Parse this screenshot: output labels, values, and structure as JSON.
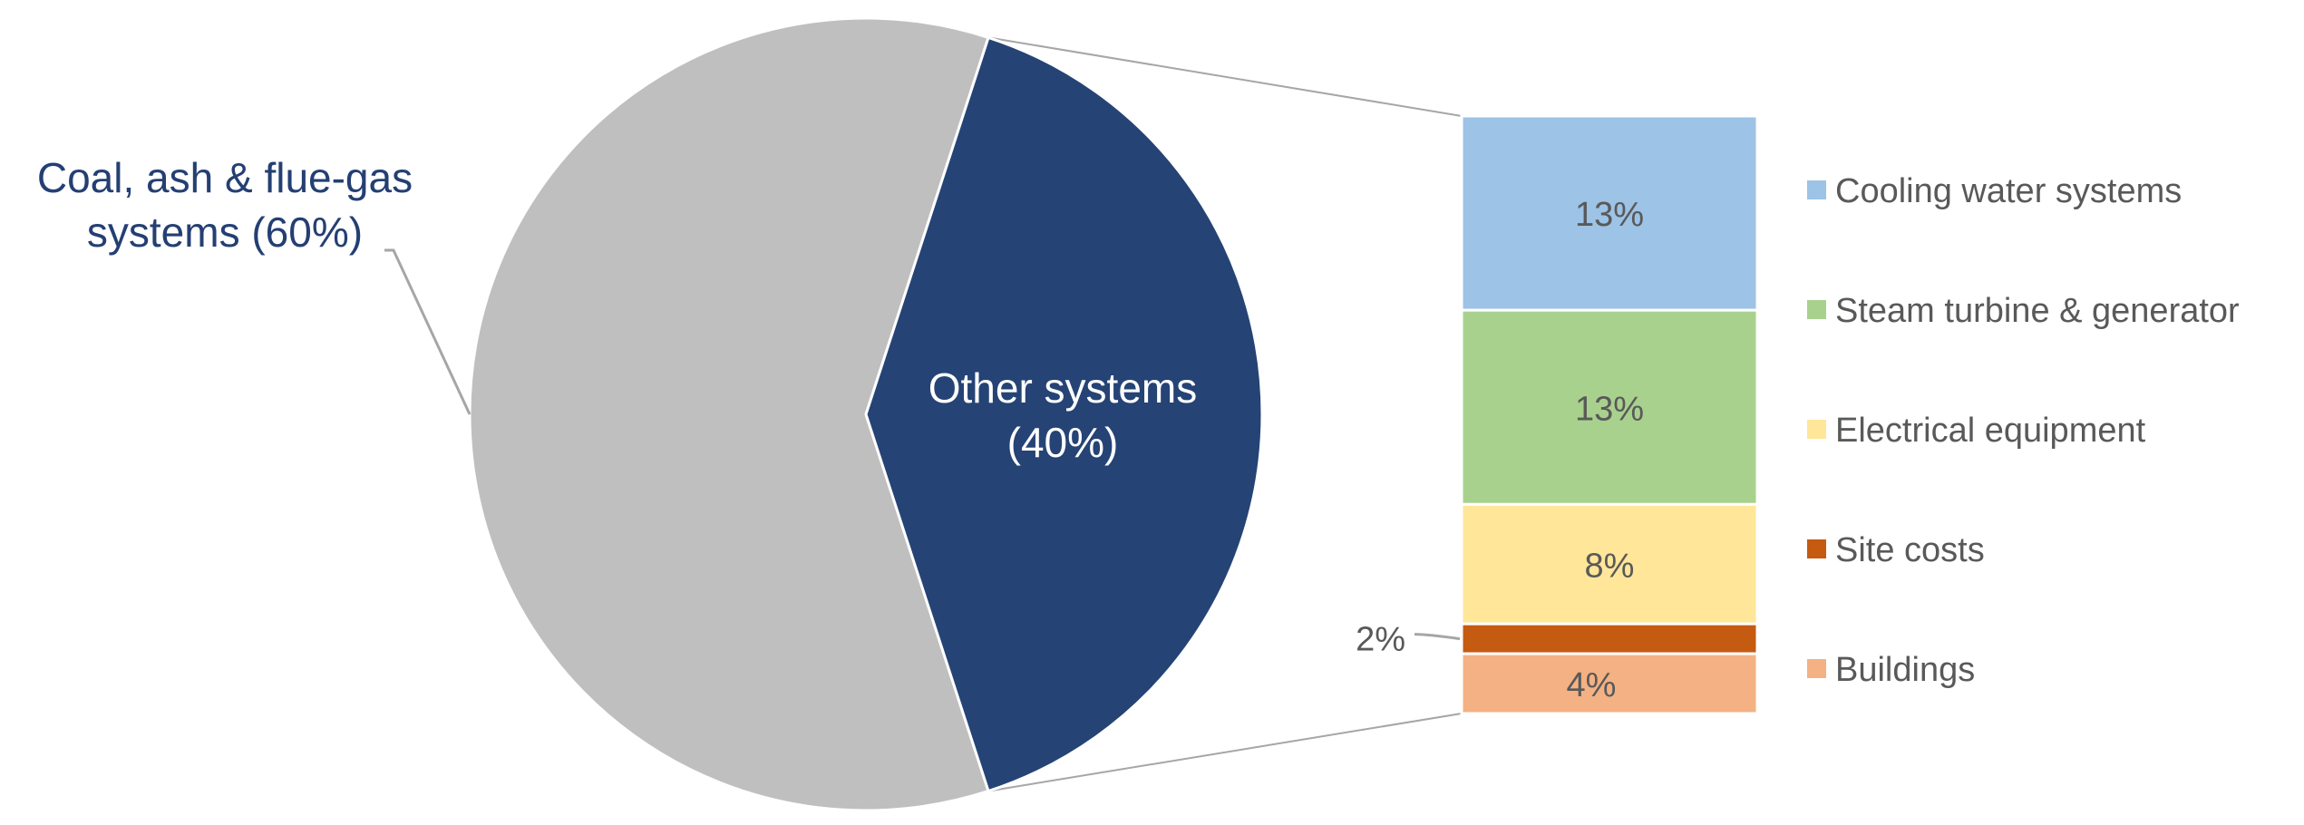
{
  "chart_data": {
    "type": "bar-of-pie",
    "pie": {
      "slices": [
        {
          "label_lines": [
            "Coal, ash & flue-gas",
            "systems (60%)"
          ],
          "value": 60,
          "color": "#bfbfbf"
        },
        {
          "label_lines": [
            "Other systems",
            "(40%)"
          ],
          "value": 40,
          "color": "#254375"
        }
      ]
    },
    "bar": {
      "segments": [
        {
          "name": "Cooling water systems",
          "value": 13,
          "label": "13%",
          "color": "#9dc3e6"
        },
        {
          "name": "Steam turbine & generator",
          "value": 13,
          "label": "13%",
          "color": "#a9d18e"
        },
        {
          "name": "Electrical equipment",
          "value": 8,
          "label": "8%",
          "color": "#ffe699"
        },
        {
          "name": "Site costs",
          "value": 2,
          "label": "2%",
          "color": "#c55a11"
        },
        {
          "name": "Buildings",
          "value": 4,
          "label": "4%",
          "color": "#f4b183"
        }
      ]
    },
    "legend_position": "right"
  }
}
